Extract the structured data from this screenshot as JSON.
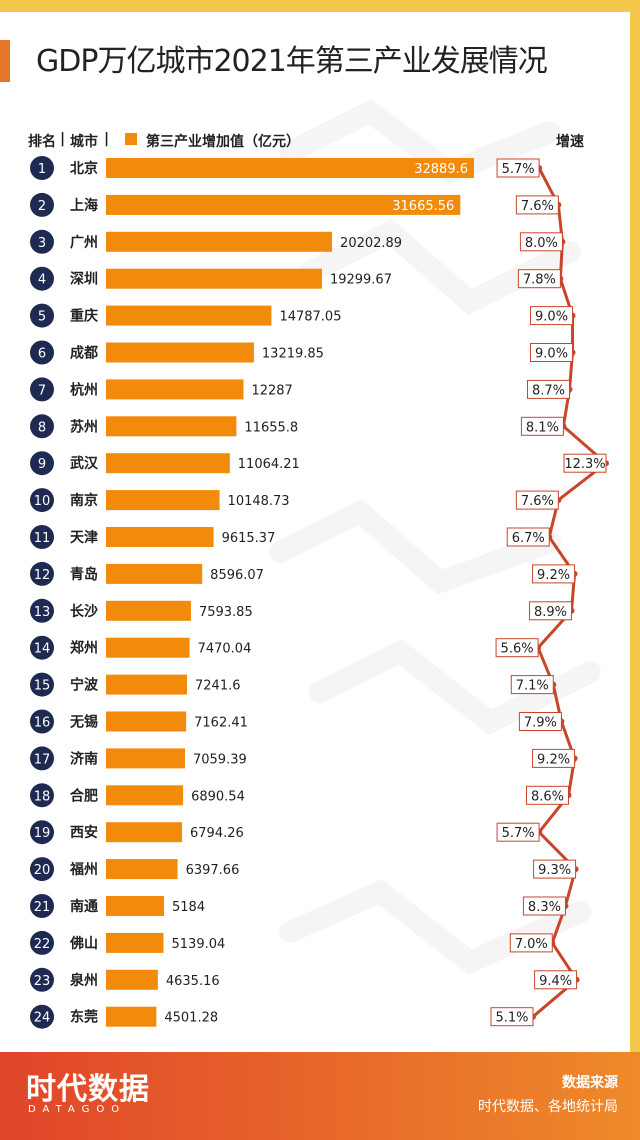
{
  "title": "GDP万亿城市2021年第三产业发展情况",
  "header": {
    "rank_label": "排名",
    "city_label": "城市",
    "legend_label": "第三产业增加值（亿元）",
    "growth_label": "增速"
  },
  "colors": {
    "bar": "#f28a0b",
    "rank_circle": "#1f2a52",
    "growth_line": "#c9452a",
    "accent": "#e8762a",
    "frame": "#f4c64a"
  },
  "chart_data": {
    "type": "bar",
    "title": "GDP万亿城市2021年第三产业发展情况",
    "ylabel": "第三产业增加值（亿元）",
    "series2_label": "增速",
    "ranks": [
      "1",
      "2",
      "3",
      "4",
      "5",
      "6",
      "7",
      "8",
      "9",
      "10",
      "11",
      "12",
      "13",
      "14",
      "15",
      "16",
      "17",
      "18",
      "19",
      "20",
      "21",
      "22",
      "23",
      "24"
    ],
    "categories": [
      "北京",
      "上海",
      "广州",
      "深圳",
      "重庆",
      "成都",
      "杭州",
      "苏州",
      "武汉",
      "南京",
      "天津",
      "青岛",
      "长沙",
      "郑州",
      "宁波",
      "无锡",
      "济南",
      "合肥",
      "西安",
      "福州",
      "南通",
      "佛山",
      "泉州",
      "东莞"
    ],
    "value_labels": [
      "32889.6",
      "31665.56",
      "20202.89",
      "19299.67",
      "14787.05",
      "13219.85",
      "12287",
      "11655.8",
      "11064.21",
      "10148.73",
      "9615.37",
      "8596.07",
      "7593.85",
      "7470.04",
      "7241.6",
      "7162.41",
      "7059.39",
      "6890.54",
      "6794.26",
      "6397.66",
      "5184",
      "5139.04",
      "4635.16",
      "4501.28"
    ],
    "values": [
      32889.6,
      31665.56,
      20202.89,
      19299.67,
      14787.05,
      13219.85,
      12287,
      11655.8,
      11064.21,
      10148.73,
      9615.37,
      8596.07,
      7593.85,
      7470.04,
      7241.6,
      7162.41,
      7059.39,
      6890.54,
      6794.26,
      6397.66,
      5184,
      5139.04,
      4635.16,
      4501.28
    ],
    "growth_labels": [
      "5.7%",
      "7.6%",
      "8.0%",
      "7.8%",
      "9.0%",
      "9.0%",
      "8.7%",
      "8.1%",
      "12.3%",
      "7.6%",
      "6.7%",
      "9.2%",
      "8.9%",
      "5.6%",
      "7.1%",
      "7.9%",
      "9.2%",
      "8.6%",
      "5.7%",
      "9.3%",
      "8.3%",
      "7.0%",
      "9.4%",
      "5.1%"
    ],
    "growth": [
      5.7,
      7.6,
      8.0,
      7.8,
      9.0,
      9.0,
      8.7,
      8.1,
      12.3,
      7.6,
      6.7,
      9.2,
      8.9,
      5.6,
      7.1,
      7.9,
      9.2,
      8.6,
      5.7,
      9.3,
      8.3,
      7.0,
      9.4,
      5.1
    ]
  },
  "footer": {
    "logo": "时代数据",
    "logo_sub": "DATAGOO",
    "source_label": "数据来源",
    "source_value": "时代数据、各地统计局"
  }
}
